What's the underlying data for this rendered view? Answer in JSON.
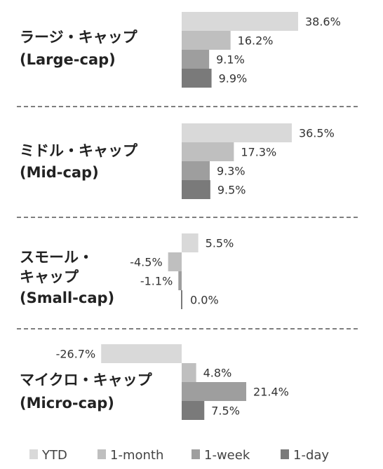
{
  "chart_data": {
    "type": "bar",
    "orientation": "horizontal",
    "categories": [
      {
        "name": "ラージ・キャップ",
        "name2": "(Large-cap)"
      },
      {
        "name": "ミドル・キャップ",
        "name2": "(Mid-cap)"
      },
      {
        "name": "スモール・",
        "name2": "キャップ",
        "name3": "(Small-cap)"
      },
      {
        "name": "マイクロ・キャップ",
        "name2": "(Micro-cap)"
      }
    ],
    "series": [
      {
        "name": "YTD",
        "color": "#d9d9d9",
        "values": [
          38.6,
          36.5,
          5.5,
          -26.7
        ]
      },
      {
        "name": "1-month",
        "color": "#bfbfbf",
        "values": [
          16.2,
          17.3,
          -4.5,
          4.8
        ]
      },
      {
        "name": "1-week",
        "color": "#9e9e9e",
        "values": [
          9.1,
          9.3,
          -1.1,
          21.4
        ]
      },
      {
        "name": "1-day",
        "color": "#7a7a7a",
        "values": [
          9.9,
          9.5,
          0.0,
          7.5
        ]
      }
    ],
    "value_labels": [
      [
        "38.6%",
        "16.2%",
        "9.1%",
        "9.9%"
      ],
      [
        "36.5%",
        "17.3%",
        "9.3%",
        "9.5%"
      ],
      [
        "5.5%",
        "-4.5%",
        "-1.1%",
        "0.0%"
      ],
      [
        "-26.7%",
        "4.8%",
        "21.4%",
        "7.5%"
      ]
    ],
    "legend_position": "bottom",
    "separators": "dashed"
  }
}
